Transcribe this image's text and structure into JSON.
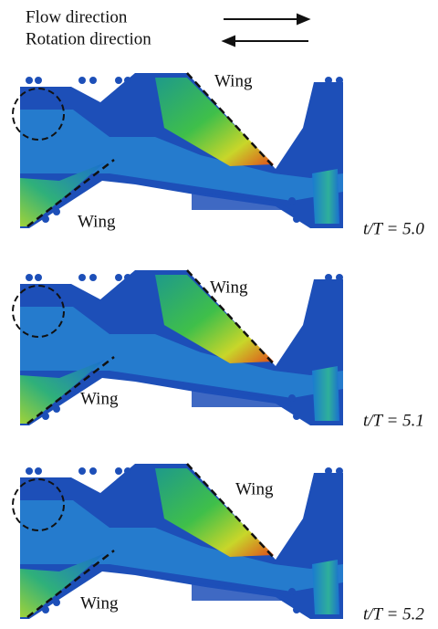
{
  "legend": [
    {
      "label": "Flow direction"
    },
    {
      "label": "Rotation direction"
    }
  ],
  "panels": [
    {
      "wing_labels": [
        "Wing",
        "Wing"
      ],
      "time_label": "t/T = 5.0"
    },
    {
      "wing_labels": [
        "Wing",
        "Wing"
      ],
      "time_label": "t/T = 5.1"
    },
    {
      "wing_labels": [
        "Wing",
        "Wing"
      ],
      "time_label": "t/T = 5.2"
    }
  ]
}
